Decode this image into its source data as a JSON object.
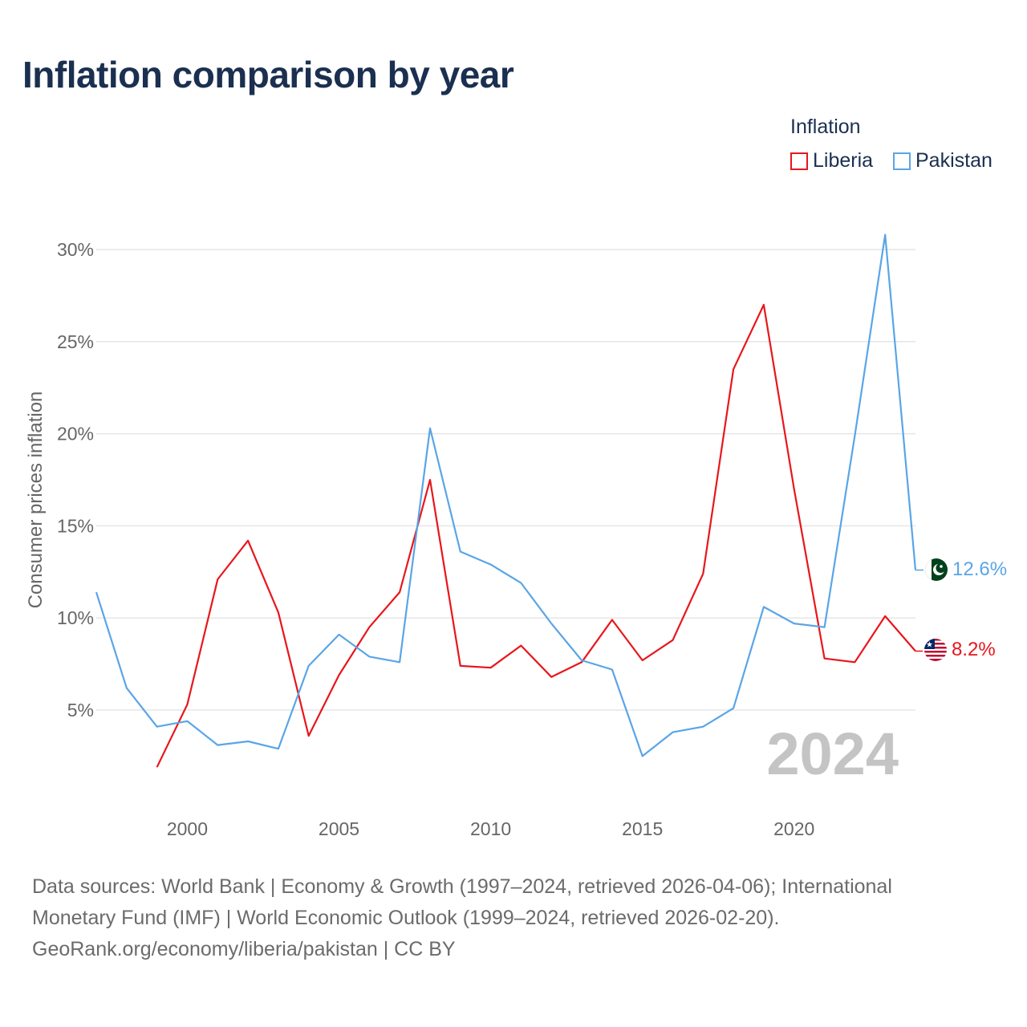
{
  "title": "Inflation comparison by year",
  "legend": {
    "title": "Inflation",
    "items": [
      "Liberia",
      "Pakistan"
    ]
  },
  "colors": {
    "liberia": "#e8161b",
    "pakistan": "#5aa5e6",
    "grid": "#e6e6e6",
    "year_watermark": "#c4c4c4"
  },
  "year_label": "2024",
  "end_labels": {
    "pakistan": "12.6%",
    "liberia": "8.2%"
  },
  "flags": {
    "pakistan": "pakistan-flag-icon",
    "liberia": "liberia-flag-icon"
  },
  "chart_data": {
    "type": "line",
    "title": "Inflation comparison by year",
    "xlabel": "",
    "ylabel": "Consumer prices inflation",
    "xlim": [
      1997,
      2024
    ],
    "ylim": [
      0,
      32
    ],
    "y_ticks": [
      5,
      10,
      15,
      20,
      25,
      30
    ],
    "y_tick_labels": [
      "5%",
      "10%",
      "15%",
      "20%",
      "25%",
      "30%"
    ],
    "x_ticks": [
      2000,
      2005,
      2010,
      2015,
      2020
    ],
    "x_tick_labels": [
      "2000",
      "2005",
      "2010",
      "2015",
      "2020"
    ],
    "grid": true,
    "legend_position": "top-right",
    "series": [
      {
        "name": "Liberia",
        "x": [
          1999,
          2000,
          2001,
          2002,
          2003,
          2004,
          2005,
          2006,
          2007,
          2008,
          2009,
          2010,
          2011,
          2012,
          2013,
          2014,
          2015,
          2016,
          2017,
          2018,
          2019,
          2020,
          2021,
          2022,
          2023,
          2024
        ],
        "values": [
          1.9,
          5.3,
          12.1,
          14.2,
          10.3,
          3.6,
          6.9,
          9.5,
          11.4,
          17.5,
          7.4,
          7.3,
          8.5,
          6.8,
          7.6,
          9.9,
          7.7,
          8.8,
          12.4,
          23.5,
          27.0,
          17.0,
          7.8,
          7.6,
          10.1,
          8.2
        ]
      },
      {
        "name": "Pakistan",
        "x": [
          1997,
          1998,
          1999,
          2000,
          2001,
          2002,
          2003,
          2004,
          2005,
          2006,
          2007,
          2008,
          2009,
          2010,
          2011,
          2012,
          2013,
          2014,
          2015,
          2016,
          2017,
          2018,
          2019,
          2020,
          2021,
          2022,
          2023,
          2024
        ],
        "values": [
          11.4,
          6.2,
          4.1,
          4.4,
          3.1,
          3.3,
          2.9,
          7.4,
          9.1,
          7.9,
          7.6,
          20.3,
          13.6,
          12.9,
          11.9,
          9.7,
          7.7,
          7.2,
          2.5,
          3.8,
          4.1,
          5.1,
          10.6,
          9.7,
          9.5,
          19.9,
          30.8,
          12.6
        ]
      }
    ]
  },
  "sources": {
    "line1": "Data sources: World Bank | Economy & Growth (1997–2024, retrieved 2026-04-06); International",
    "line2": "Monetary Fund (IMF) | World Economic Outlook (1999–2024, retrieved 2026-02-20).",
    "line3": "GeoRank.org/economy/liberia/pakistan | CC BY"
  }
}
